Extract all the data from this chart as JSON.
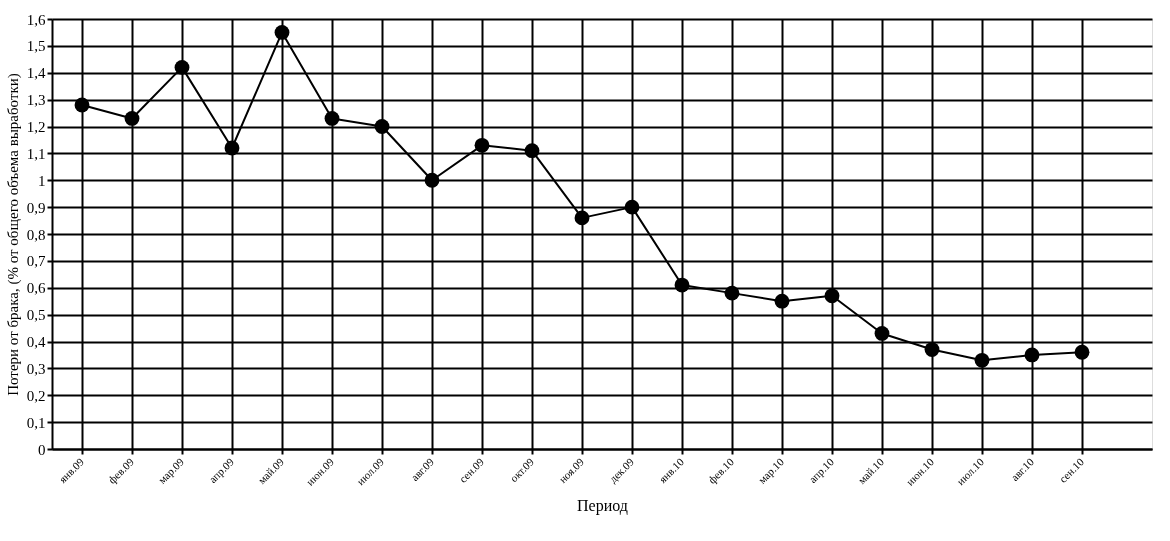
{
  "chart_data": {
    "type": "line",
    "xlabel": "Период",
    "ylabel": "Потери от брака, (% от общего объема выработки)",
    "categories": [
      "янв.09",
      "фев.09",
      "мар.09",
      "апр.09",
      "май.09",
      "июн.09",
      "июл.09",
      "авг.09",
      "сен.09",
      "окт.09",
      "ноя.09",
      "дек.09",
      "янв.10",
      "фев.10",
      "мар.10",
      "апр.10",
      "май.10",
      "июн.10",
      "июл.10",
      "авг.10",
      "сен.10"
    ],
    "series": [
      {
        "color": "#000000",
        "values": [
          1.28,
          1.23,
          1.42,
          1.12,
          1.55,
          1.23,
          1.2,
          1.0,
          1.13,
          1.11,
          0.86,
          0.9,
          0.61,
          0.58,
          0.55,
          0.57,
          0.43,
          0.37,
          0.33,
          0.35,
          0.36
        ]
      }
    ],
    "ylim": [
      0,
      1.6
    ],
    "yticks": [
      0,
      {
        "value": 0.1,
        "label": "0,1"
      },
      {
        "value": 0.2,
        "label": "0,2"
      },
      {
        "value": 0.3,
        "label": "0,3"
      },
      {
        "value": 0.4,
        "label": "0,4"
      },
      {
        "value": 0.5,
        "label": "0,5"
      },
      {
        "value": 0.6,
        "label": "0,6"
      },
      {
        "value": 0.7,
        "label": "0,7"
      },
      {
        "value": 0.8,
        "label": "0,8"
      },
      {
        "value": 0.9,
        "label": "0,9"
      },
      1,
      {
        "value": 1.1,
        "label": "1,1"
      },
      {
        "value": 1.2,
        "label": "1,2"
      },
      {
        "value": 1.3,
        "label": "1,3"
      },
      {
        "value": 1.4,
        "label": "1,4"
      },
      {
        "value": 1.5,
        "label": "1,5"
      },
      {
        "value": 1.6,
        "label": "1,6"
      }
    ],
    "grid": true,
    "marker": "circle",
    "line_style": "solid"
  }
}
